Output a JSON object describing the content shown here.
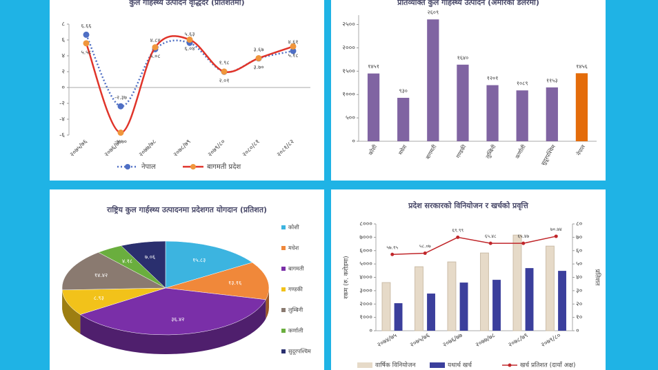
{
  "chart_data": [
    {
      "type": "line",
      "title": "कुल गार्हस्थ्य उत्पादन वृद्धिदर (प्रतिशतमा)",
      "categories": [
        "२०७५/७६",
        "२०७६/७७",
        "२०७७/७८",
        "२०७८/७९",
        "२०७९/८०",
        "२०८०/८१",
        "२०८१/८२"
      ],
      "series": [
        {
          "name": "नेपाल",
          "color": "#4f6fc4",
          "dashed": true,
          "values": [
            6.66,
            -2.37,
            4.84,
            5.63,
            1.98,
            3.67,
            4.61
          ],
          "value_labels": [
            "६.६६",
            "-२.३७",
            "४.८४",
            "५.६३",
            "१.९८",
            "३.६७",
            "४.६१"
          ]
        },
        {
          "name": "बागमती प्रदेश",
          "color": "#e0342a",
          "marker_color": "#f0963c",
          "values": [
            5.58,
            -5.7,
            5.08,
            6.04,
            2.01,
            3.7,
            5.18
          ],
          "value_labels": [
            "५.५८",
            "-५.७०",
            "५.०८",
            "६.०४",
            "२.०१",
            "३.७०",
            "५.१८"
          ]
        }
      ],
      "ylim": [
        -6,
        8
      ],
      "yticks": [
        {
          "value": -6,
          "label": "-६"
        },
        {
          "value": -4,
          "label": "-४"
        },
        {
          "value": -2,
          "label": "-२"
        },
        {
          "value": 0,
          "label": "०"
        },
        {
          "value": 2,
          "label": "२"
        },
        {
          "value": 4,
          "label": "४"
        },
        {
          "value": 6,
          "label": "६"
        },
        {
          "value": 8,
          "label": "८"
        }
      ]
    },
    {
      "type": "bar",
      "title": "प्रतिव्यक्ति कुल गार्हस्थ्य उत्पादन (अमेरिकी डलरमा)",
      "categories": [
        "कोशी",
        "मधेश",
        "बागमती",
        "गण्डकी",
        "लुम्बिनी",
        "कर्णाली",
        "सुदूरपश्चिम",
        "नेपाल"
      ],
      "values": [
        1451,
        930,
        2609,
        1640,
        1201,
        1089,
        1153,
        1456
      ],
      "value_labels": [
        "१४५१",
        "९३०",
        "२६०९",
        "१६४०",
        "१२०१",
        "१०८९",
        "११५३",
        "१४५६"
      ],
      "colors": [
        "#8064a2",
        "#8064a2",
        "#8064a2",
        "#8064a2",
        "#8064a2",
        "#8064a2",
        "#8064a2",
        "#e46c0a"
      ],
      "ylim": [
        0,
        2700
      ],
      "yticks": [
        {
          "value": 0,
          "label": "०"
        },
        {
          "value": 500,
          "label": "५००"
        },
        {
          "value": 1000,
          "label": "१०००"
        },
        {
          "value": 1500,
          "label": "१५००"
        },
        {
          "value": 2000,
          "label": "२०००"
        },
        {
          "value": 2500,
          "label": "२५००"
        }
      ]
    },
    {
      "type": "pie",
      "title": "राष्ट्रिय कुल गार्हस्थ्य उत्पादनमा प्रदेशगत योगदान (प्रतिशत)",
      "labels": [
        "कोशी",
        "मधेश",
        "बागमती",
        "गण्डकी",
        "लुम्बिनी",
        "कर्णाली",
        "सुदूरपश्चिम"
      ],
      "values": [
        15.83,
        13.16,
        36.42,
        8.93,
        14.42,
        4.18,
        7.06
      ],
      "value_labels": [
        "१५.८३",
        "१३.१६",
        "३६.४२",
        "८.९३",
        "१४.४२",
        "४.१८",
        "७.०६"
      ],
      "colors": [
        "#3cb4e0",
        "#f0883a",
        "#7a2fa8",
        "#f2c21a",
        "#8a7a70",
        "#6aae3e",
        "#2a2f6e"
      ]
    },
    {
      "type": "combo",
      "title": "प्रदेश सरकारको विनियोजन र खर्चको प्रवृत्ति",
      "y_label": "रकम (रु. करोडमा)",
      "y2_label": "प्रतिशत",
      "categories": [
        "२०७४/७५",
        "२०७५/७६",
        "२०७६/७७",
        "२०७७/७८",
        "२०७८/७९",
        "२०७९/८०"
      ],
      "series": [
        {
          "name": "वार्षिक विनियोजन",
          "type": "bar",
          "color": "#e6dac8",
          "values": [
            3608,
            4794,
            5155,
            5825,
            7165,
            6340
          ]
        },
        {
          "name": "यथार्थ खर्च",
          "type": "bar",
          "color": "#3b3f9c",
          "values": [
            2062,
            2784,
            3608,
            3814,
            4691,
            4485
          ]
        },
        {
          "name": "खर्च प्रतिशत (दायाँ अक्ष)",
          "type": "line",
          "axis": "y2",
          "color": "#c0262a",
          "values": [
            57.15,
            58.07,
            69.99,
            65.48,
            65.47,
            70.74
          ],
          "value_labels": [
            "५७.१५",
            "५८.०७",
            "६९.९९",
            "६५.४८",
            "६५.४७",
            "७०.७४"
          ]
        }
      ],
      "ylim": [
        0,
        8000
      ],
      "yticks": [
        {
          "value": 0,
          "label": "०"
        },
        {
          "value": 1000,
          "label": "१०००"
        },
        {
          "value": 2000,
          "label": "२०००"
        },
        {
          "value": 3000,
          "label": "३०००"
        },
        {
          "value": 4000,
          "label": "४०००"
        },
        {
          "value": 5000,
          "label": "५०००"
        },
        {
          "value": 6000,
          "label": "६०००"
        },
        {
          "value": 7000,
          "label": "७०००"
        },
        {
          "value": 8000,
          "label": "८०००"
        }
      ],
      "y2lim": [
        0,
        80
      ],
      "y2ticks": [
        {
          "value": 0,
          "label": "०"
        },
        {
          "value": 10,
          "label": "१०"
        },
        {
          "value": 20,
          "label": "२०"
        },
        {
          "value": 30,
          "label": "३०"
        },
        {
          "value": 40,
          "label": "४०"
        },
        {
          "value": 50,
          "label": "५०"
        },
        {
          "value": 60,
          "label": "६०"
        },
        {
          "value": 70,
          "label": "७०"
        },
        {
          "value": 80,
          "label": "८०"
        }
      ]
    }
  ]
}
